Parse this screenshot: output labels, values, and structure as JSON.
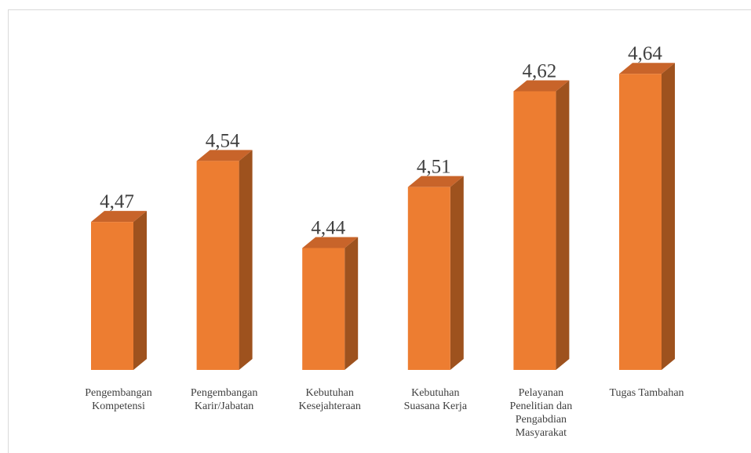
{
  "chart_data": {
    "type": "bar",
    "style": "3d-column",
    "categories": [
      [
        "Pengembangan",
        "Kompetensi"
      ],
      [
        "Pengembangan",
        "Karir/Jabatan"
      ],
      [
        "Kebutuhan",
        "Kesejahteraan"
      ],
      [
        "Kebutuhan",
        "Suasana Kerja"
      ],
      [
        "Pelayanan",
        "Penelitian dan",
        "Pengabdian",
        "Masyarakat"
      ],
      [
        "Tugas Tambahan"
      ]
    ],
    "values": [
      4.47,
      4.54,
      4.44,
      4.51,
      4.62,
      4.64
    ],
    "value_labels": [
      "4,47",
      "4,54",
      "4,44",
      "4,51",
      "4,62",
      "4,64"
    ],
    "ylim": [
      4.3,
      4.66
    ],
    "grid": false,
    "legend": "none",
    "colors": {
      "front": "#ed7d31",
      "side": "#9e521e",
      "top": "#c8642a",
      "text": "#404040"
    }
  }
}
